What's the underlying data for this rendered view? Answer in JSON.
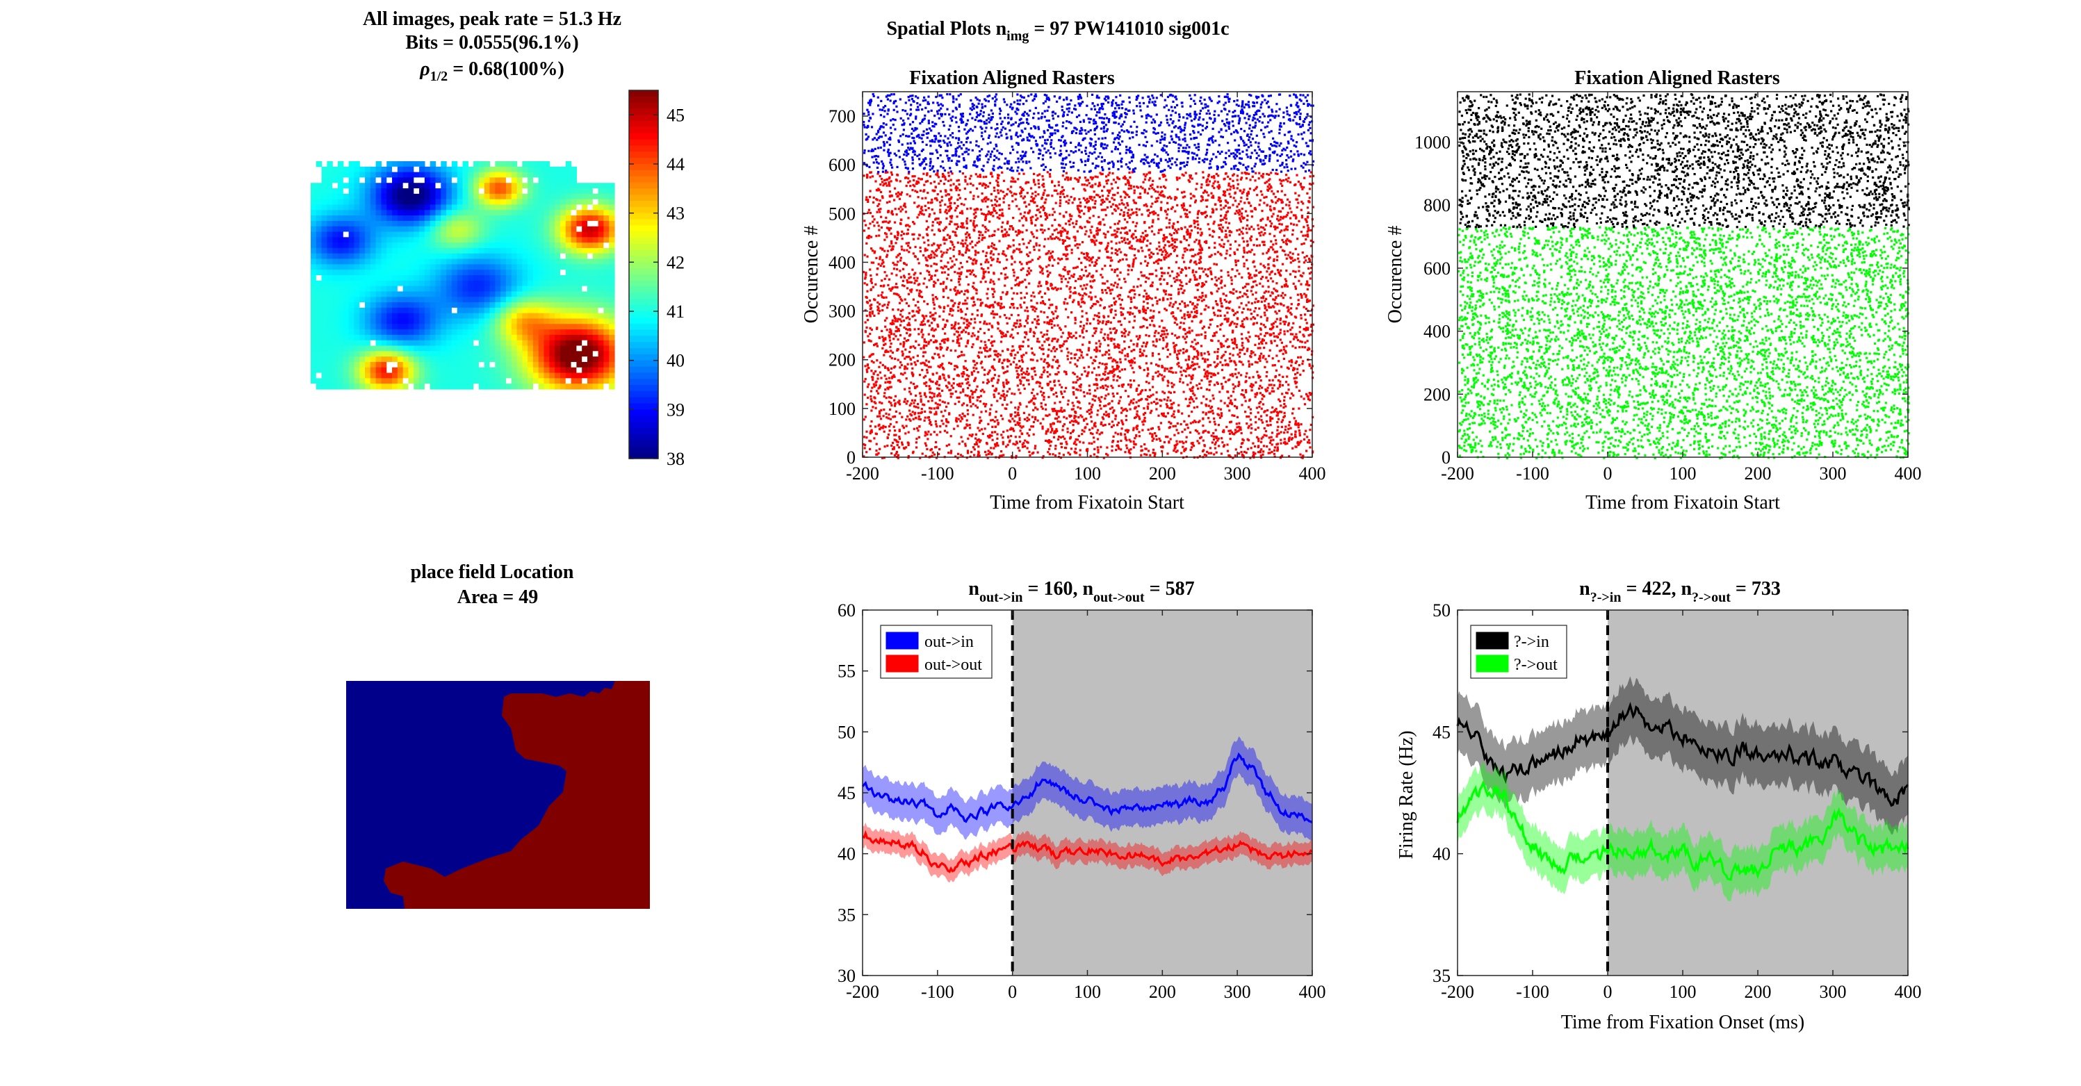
{
  "figure": {
    "suptitle_main": "Spatial Plots n",
    "suptitle_sub": "img",
    "suptitle_rest": " = 97  PW141010 sig001c"
  },
  "spatial_map": {
    "title_line1": "All images, peak rate = 51.3 Hz",
    "title_line2": "Bits = 0.0555(96.1%)",
    "title_line3_symbol": "ρ",
    "title_line3_sub": "1/2",
    "title_line3_rest": " = 0.68(100%)",
    "colorbar_ticks": [
      "38",
      "39",
      "40",
      "41",
      "42",
      "43",
      "44",
      "45"
    ],
    "colorbar_range": [
      38,
      45.5
    ]
  },
  "place_field": {
    "title_line1": "place field Location",
    "title_line2": "Area = 49",
    "in_color": "#800000",
    "out_color": "#00008b"
  },
  "raster1": {
    "title": "Fixation Aligned Rasters",
    "xlabel": "Time from Fixatoin Start",
    "ylabel": "Occurence #",
    "xticks": [
      "-200",
      "-100",
      "0",
      "100",
      "200",
      "300",
      "400"
    ],
    "yticks": [
      "0",
      "100",
      "200",
      "300",
      "400",
      "500",
      "600",
      "700"
    ],
    "colors": [
      "#ff0000",
      "#0000ff"
    ]
  },
  "raster2": {
    "title": "Fixation Aligned Rasters",
    "xlabel": "Time from Fixatoin Start",
    "ylabel": "Occurence #",
    "xticks": [
      "-200",
      "-100",
      "0",
      "100",
      "200",
      "300",
      "400"
    ],
    "yticks": [
      "0",
      "200",
      "400",
      "600",
      "800",
      "1000"
    ],
    "colors": [
      "#00ff00",
      "#000000"
    ]
  },
  "psth1": {
    "title_n1": "n",
    "title_sub1": "out->in",
    "title_v1": " = 160, ",
    "title_n2": "n",
    "title_sub2": "out->out",
    "title_v2": " = 587",
    "xticks": [
      "-200",
      "-100",
      "0",
      "100",
      "200",
      "300",
      "400"
    ],
    "yticks": [
      "30",
      "35",
      "40",
      "45",
      "50",
      "55",
      "60"
    ],
    "legend": [
      "out->in",
      "out->out"
    ]
  },
  "psth2": {
    "title_n1": "n",
    "title_sub1": "?->in",
    "title_v1": " = 422, ",
    "title_n2": "n",
    "title_sub2": "?->out",
    "title_v2": " = 733",
    "xlabel": "Time from Fixation Onset (ms)",
    "ylabel": "Firing Rate (Hz)",
    "xticks": [
      "-200",
      "-100",
      "0",
      "100",
      "200",
      "300",
      "400"
    ],
    "yticks": [
      "35",
      "40",
      "45",
      "50"
    ],
    "legend": [
      "?->in",
      "?->out"
    ]
  },
  "chart_data": [
    {
      "type": "heatmap",
      "panel": "spatial-firing-map",
      "title": "All images, peak rate = 51.3 Hz / Bits = 0.0555(96.1%) / ρ1/2 = 0.68(100%)",
      "colorbar_range": [
        38,
        45.5
      ],
      "colormap": "jet"
    },
    {
      "type": "heatmap",
      "panel": "place-field-location",
      "title": "place field Location / Area = 49",
      "values_legend": [
        "out",
        "in"
      ]
    },
    {
      "type": "scatter",
      "panel": "raster-1",
      "title": "Fixation Aligned Rasters",
      "xlabel": "Time from Fixatoin Start",
      "ylabel": "Occurence #",
      "xlim": [
        -200,
        400
      ],
      "ylim": [
        0,
        750
      ],
      "series": [
        {
          "rows": [
            1,
            587
          ],
          "color": "#ff0000"
        },
        {
          "rows": [
            588,
            747
          ],
          "color": "#0000ff"
        }
      ]
    },
    {
      "type": "scatter",
      "panel": "raster-2",
      "title": "Fixation Aligned Rasters",
      "xlabel": "Time from Fixatoin Start",
      "ylabel": "Occurence #",
      "xlim": [
        -200,
        400
      ],
      "ylim": [
        0,
        1160
      ],
      "series": [
        {
          "rows": [
            1,
            733
          ],
          "color": "#00ff00"
        },
        {
          "rows": [
            734,
            1155
          ],
          "color": "#000000"
        }
      ]
    },
    {
      "type": "line",
      "panel": "psth-1",
      "xlim": [
        -200,
        400
      ],
      "ylim": [
        30,
        60
      ],
      "shaded_region": [
        0,
        400
      ],
      "vline": 0,
      "x": [
        -200,
        -180,
        -160,
        -140,
        -120,
        -100,
        -80,
        -60,
        -40,
        -20,
        0,
        20,
        40,
        60,
        80,
        100,
        120,
        140,
        160,
        180,
        200,
        220,
        240,
        260,
        280,
        300,
        320,
        340,
        360,
        380,
        400
      ],
      "series": [
        {
          "name": "out->in",
          "color": "#0000ff",
          "band": 1.5,
          "values": [
            45.5,
            45.0,
            44.5,
            44.3,
            44.0,
            43.3,
            43.8,
            42.8,
            43.5,
            43.8,
            44.0,
            44.8,
            46.0,
            45.5,
            44.8,
            44.5,
            43.8,
            43.5,
            43.8,
            43.5,
            44.2,
            44.0,
            44.5,
            44.2,
            45.5,
            48.0,
            47.0,
            45.0,
            43.5,
            43.0,
            42.5
          ]
        },
        {
          "name": "out->out",
          "color": "#ff0000",
          "band": 0.9,
          "values": [
            41.5,
            41.2,
            41.0,
            40.8,
            40.2,
            38.8,
            38.9,
            39.3,
            39.8,
            40.2,
            40.4,
            40.6,
            40.3,
            40.0,
            40.1,
            40.3,
            40.2,
            40.0,
            39.8,
            39.8,
            39.2,
            39.6,
            39.8,
            40.0,
            40.3,
            40.8,
            40.3,
            39.8,
            39.8,
            40.0,
            40.2
          ]
        }
      ]
    },
    {
      "type": "line",
      "panel": "psth-2",
      "xlabel": "Time from Fixation Onset (ms)",
      "ylabel": "Firing Rate (Hz)",
      "xlim": [
        -200,
        400
      ],
      "ylim": [
        35,
        50
      ],
      "shaded_region": [
        0,
        400
      ],
      "vline": 0,
      "x": [
        -200,
        -180,
        -160,
        -140,
        -120,
        -100,
        -80,
        -60,
        -40,
        -20,
        0,
        20,
        40,
        60,
        80,
        100,
        120,
        140,
        160,
        180,
        200,
        220,
        240,
        260,
        280,
        300,
        320,
        340,
        360,
        380,
        400
      ],
      "series": [
        {
          "name": "?->in",
          "color": "#000000",
          "band": 1.2,
          "values": [
            45.5,
            44.8,
            43.8,
            43.2,
            43.5,
            43.7,
            43.7,
            44.3,
            44.8,
            44.6,
            44.9,
            45.8,
            46.0,
            45.0,
            45.2,
            44.8,
            44.5,
            44.2,
            44.0,
            44.3,
            44.0,
            43.8,
            44.1,
            43.9,
            43.8,
            43.8,
            43.5,
            43.2,
            42.5,
            42.3,
            42.6
          ]
        },
        {
          "name": "?->out",
          "color": "#00ff00",
          "band": 0.9,
          "values": [
            41.5,
            42.2,
            42.8,
            42.5,
            41.2,
            40.2,
            39.8,
            39.5,
            39.9,
            40.0,
            40.0,
            40.3,
            40.0,
            40.2,
            40.0,
            40.1,
            39.7,
            39.8,
            39.3,
            39.4,
            39.2,
            40.0,
            40.2,
            40.3,
            40.5,
            41.5,
            41.3,
            40.5,
            40.2,
            40.2,
            40.4
          ]
        }
      ]
    }
  ]
}
